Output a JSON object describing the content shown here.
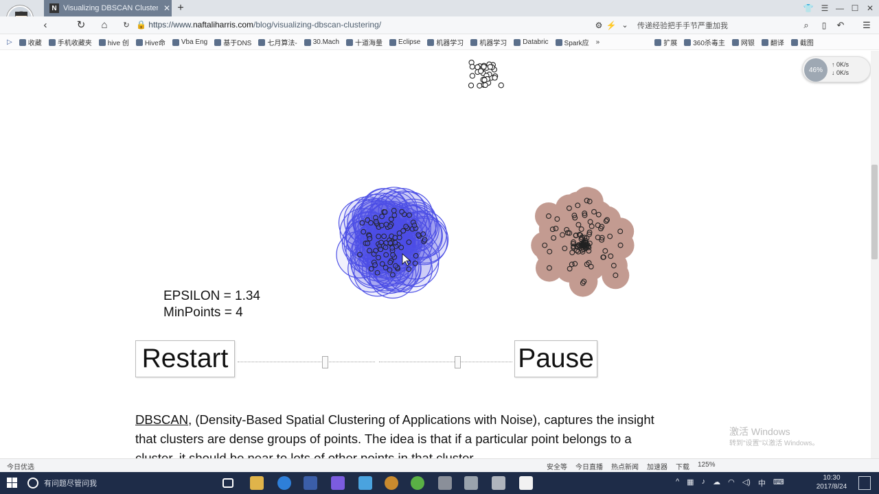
{
  "browser": {
    "tab_title": "Visualizing DBSCAN Clusterin",
    "favicon_letter": "N",
    "url_scheme": "https://www.",
    "url_host": "naftaliharris.com",
    "url_path": "/blog/visualizing-dbscan-clustering/",
    "search_text": "传递经验把手手节严重加我",
    "bookmarks": [
      "收藏",
      "手机收藏夹",
      "hive 创",
      "Hive命",
      "Vba Eng",
      "基于DNS",
      "七月算法-",
      "30.Mach",
      "十道海量",
      "Eclipse",
      "机器学习",
      "机器学习",
      "Databric",
      "Spark应"
    ],
    "bookmarks_right": [
      "扩展",
      "360杀毒主",
      "网银",
      "翻译",
      "截图"
    ],
    "net_speed_up": "0K/s",
    "net_speed_down": "0K/s",
    "speed_ball_label": "46%"
  },
  "visualization": {
    "epsilon_text": "EPSILON = 1.34",
    "minpoints_text": "MinPoints = 4",
    "colors": {
      "blue_cluster": "#4f52e6",
      "brown_cluster": "#c39b91",
      "point_stroke": "#222222"
    }
  },
  "controls": {
    "restart_label": "Restart",
    "pause_label": "Pause"
  },
  "article": {
    "link_text": "DBSCAN",
    "text": ", (Density-Based Spatial Clustering of Applications with Noise), captures the insight that clusters are dense groups of points. The idea is that if a particular point belongs to a cluster, it should be near to lots of other points in that cluster."
  },
  "watermark": {
    "line1": "激活 Windows",
    "line2": "转到\"设置\"以激活 Windows。"
  },
  "statusbar": {
    "left": "今日优选",
    "items": [
      "安全等",
      "今日直播",
      "热点新闻",
      "加速器",
      "下载",
      "125%"
    ]
  },
  "taskbar": {
    "search_placeholder": "有问题尽管问我",
    "time": "10:30",
    "date": "2017/8/24",
    "ime": "中"
  }
}
